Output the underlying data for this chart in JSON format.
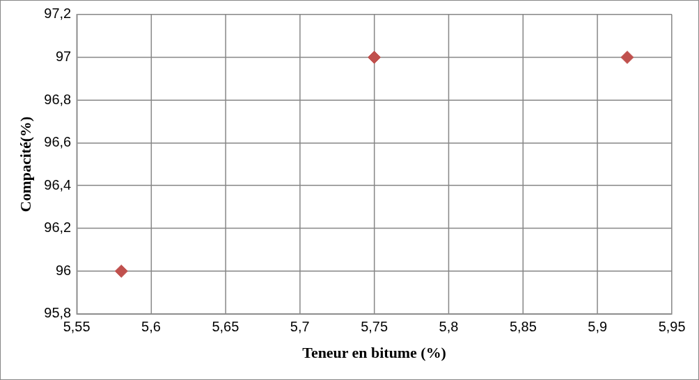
{
  "chart_data": {
    "type": "scatter",
    "xlabel": "Teneur en bitume (%)",
    "ylabel": "Compacité(%)",
    "x": [
      5.58,
      5.75,
      5.92
    ],
    "series": [
      {
        "color": "#c0504d",
        "values": [
          96,
          97,
          97
        ]
      }
    ],
    "xlim": [
      5.55,
      5.95
    ],
    "xticks": [
      {
        "value": 5.55,
        "label": "5,55"
      },
      {
        "value": 5.6,
        "label": "5,6"
      },
      {
        "value": 5.65,
        "label": "5,65"
      },
      {
        "value": 5.7,
        "label": "5,7"
      },
      {
        "value": 5.75,
        "label": "5,75"
      },
      {
        "value": 5.8,
        "label": "5,8"
      },
      {
        "value": 5.85,
        "label": "5,85"
      },
      {
        "value": 5.9,
        "label": "5,9"
      },
      {
        "value": 5.95,
        "label": "5,95"
      }
    ],
    "ylim": [
      95.8,
      97.2
    ],
    "yticks": [
      {
        "value": 95.8,
        "label": "95,8"
      },
      96,
      {
        "value": 96.2,
        "label": "96,2"
      },
      {
        "value": 96.4,
        "label": "96,4"
      },
      {
        "value": 96.6,
        "label": "96,6"
      },
      {
        "value": 96.8,
        "label": "96,8"
      },
      97,
      {
        "value": 97.2,
        "label": "97,2"
      }
    ],
    "grid": true,
    "legend": false,
    "marker": "diamond"
  }
}
